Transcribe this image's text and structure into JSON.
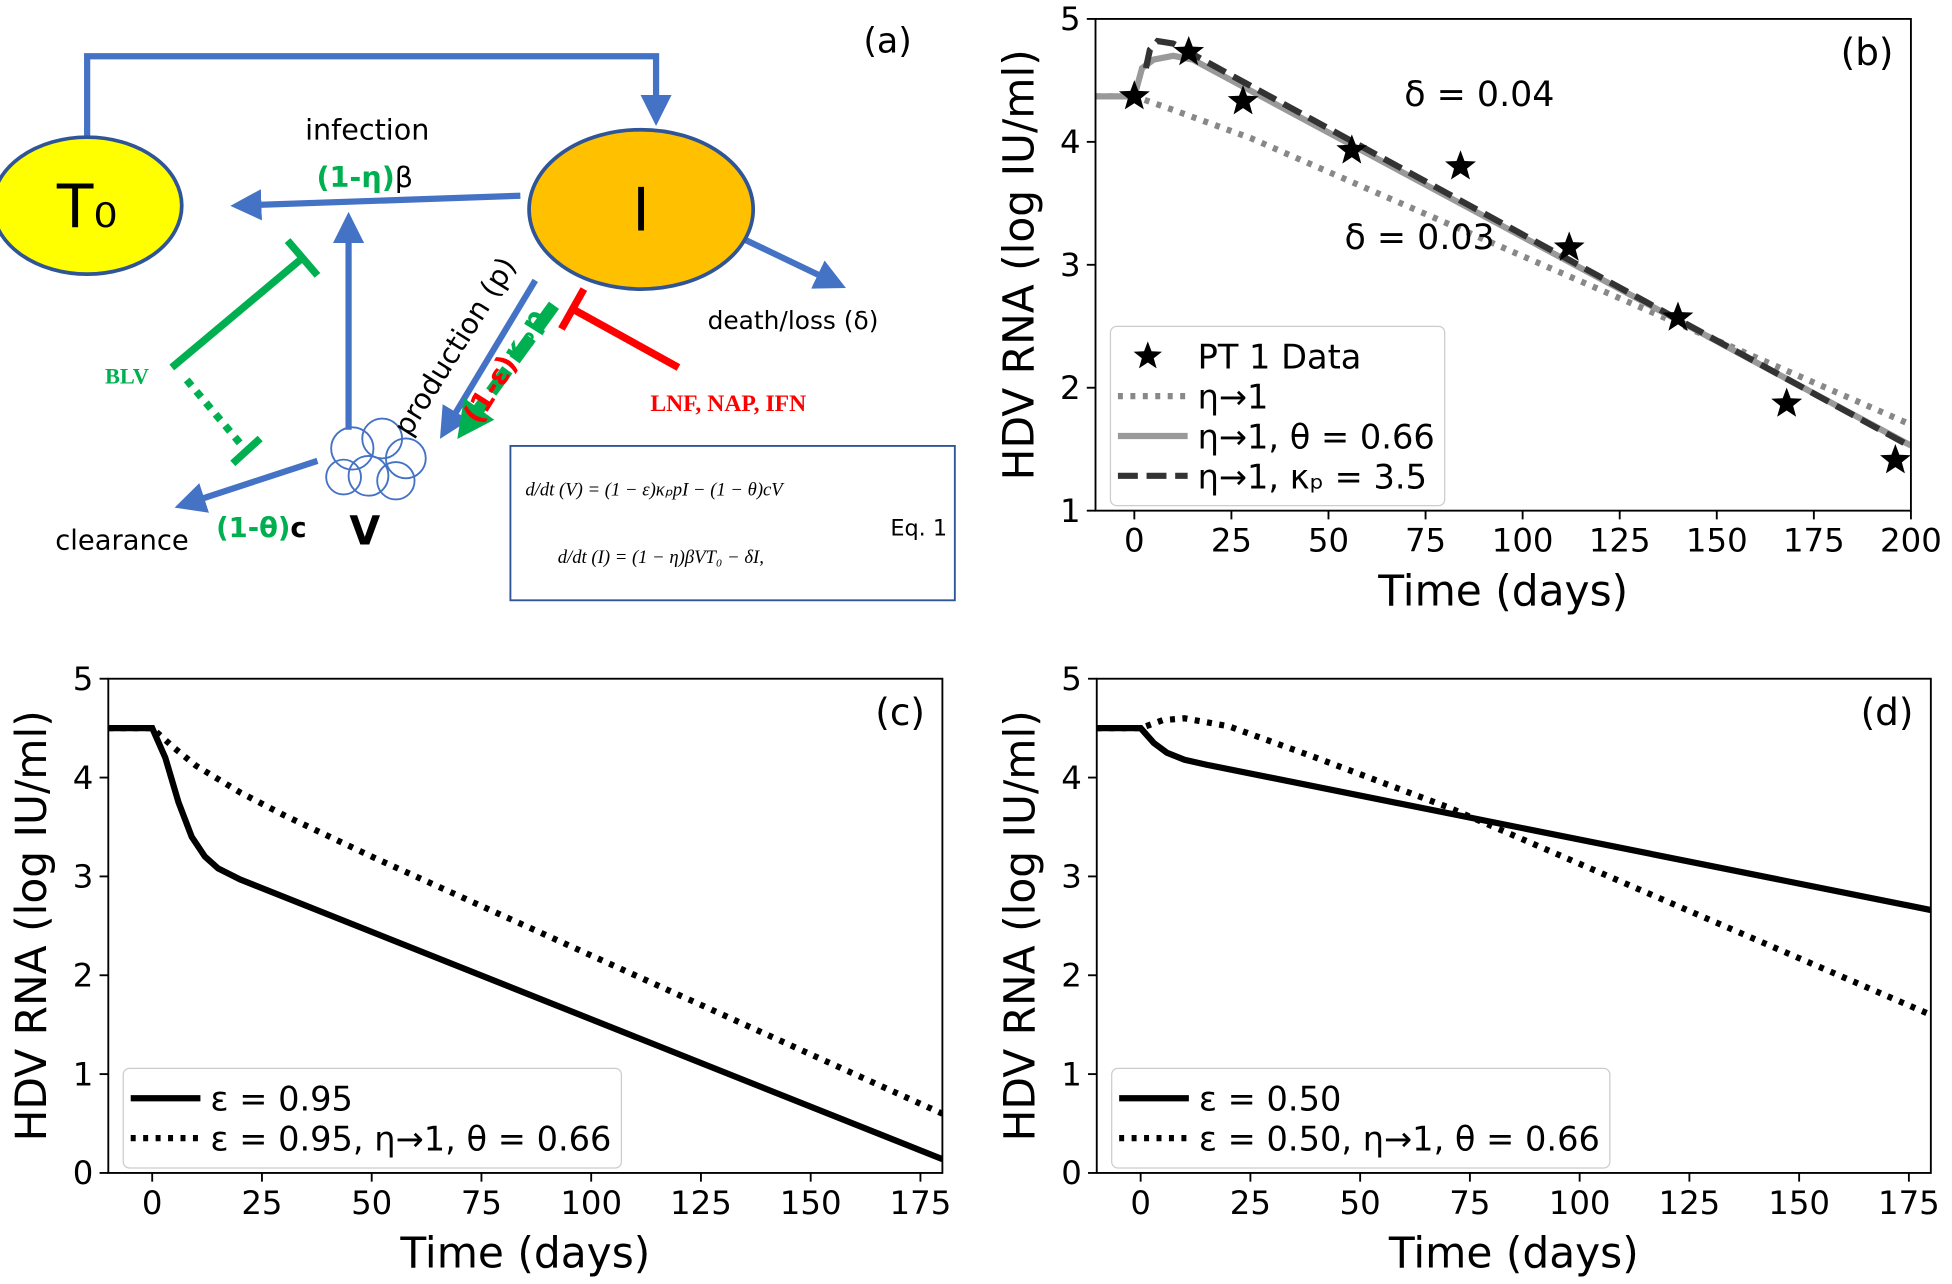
{
  "diagram": {
    "label": "(a)",
    "nodes": [
      {
        "label": "T₀"
      },
      {
        "label": "I"
      },
      {
        "label": "V"
      }
    ],
    "edge_labels": {
      "infection": "infection",
      "infection_rate": [
        "(1-η)",
        "β"
      ],
      "production": "production (p)",
      "production_rate": [
        "(1-ε)",
        "κₚp"
      ],
      "death": "death/loss (δ)",
      "clearance": "clearance",
      "clearance_rate": [
        "(1-θ)",
        "c"
      ]
    },
    "inhibitors": [
      "BLV",
      "LNF, NAP, IFN"
    ],
    "equations": {
      "lines": [
        "d/dt (V) = (1 − ε)κₚpI − (1 − θ)cV",
        "d/dt (I) = (1 − η)βVT₀ − δI,"
      ],
      "label": "Eq. 1"
    }
  },
  "chart_data": [
    {
      "type": "line",
      "label": "(b)",
      "x_label": "Time (days)",
      "y_label": "HDV RNA (log IU/ml)",
      "xlim": [
        -10,
        200
      ],
      "ylim": [
        1,
        5
      ],
      "xticks": [
        0,
        25,
        50,
        75,
        100,
        125,
        150,
        175,
        200
      ],
      "yticks": [
        1,
        2,
        3,
        4,
        5
      ],
      "legend": "lower left",
      "annotations": [
        "δ = 0.04",
        "δ = 0.03"
      ],
      "series": [
        {
          "name": "PT 1 Data",
          "color": "#000000",
          "marker": "star",
          "linestyle": "none",
          "x": [
            0,
            14,
            28,
            56,
            84,
            112,
            140,
            168,
            196
          ],
          "values": [
            4.37,
            4.73,
            4.33,
            3.93,
            3.8,
            3.14,
            2.57,
            1.87,
            1.41
          ]
        },
        {
          "name": "η→1",
          "color": "#888888",
          "linestyle": "dotted",
          "x": [
            -10,
            0,
            10,
            30,
            200
          ],
          "values": [
            4.37,
            4.37,
            4.26,
            4.03,
            1.7
          ]
        },
        {
          "name": "η→1, θ = 0.66",
          "color": "#999999",
          "linestyle": "solid",
          "x": [
            -10,
            0,
            2,
            5,
            10,
            15,
            200
          ],
          "values": [
            4.37,
            4.37,
            4.6,
            4.67,
            4.7,
            4.67,
            1.53
          ]
        },
        {
          "name": "η→1, κₚ = 3.5",
          "color": "#333333",
          "linestyle": "dashed",
          "x": [
            3,
            4,
            6,
            10,
            200
          ],
          "values": [
            4.6,
            4.75,
            4.82,
            4.8,
            1.52
          ]
        }
      ]
    },
    {
      "type": "line",
      "label": "(c)",
      "x_label": "Time (days)",
      "y_label": "HDV RNA (log IU/ml)",
      "xlim": [
        -10,
        180
      ],
      "ylim": [
        0,
        5
      ],
      "xticks": [
        0,
        25,
        50,
        75,
        100,
        125,
        150,
        175
      ],
      "yticks": [
        0,
        1,
        2,
        3,
        4,
        5
      ],
      "legend": "lower left",
      "series": [
        {
          "name": "ε = 0.95",
          "color": "#000000",
          "linestyle": "solid",
          "x": [
            -10,
            0,
            3,
            6,
            9,
            12,
            15,
            20,
            180
          ],
          "values": [
            4.5,
            4.5,
            4.2,
            3.75,
            3.4,
            3.2,
            3.08,
            2.97,
            0.14
          ]
        },
        {
          "name": "ε = 0.95, η→1, θ = 0.66",
          "color": "#000000",
          "linestyle": "dotted",
          "x": [
            -10,
            0,
            5,
            10,
            20,
            30,
            50,
            180
          ],
          "values": [
            4.5,
            4.5,
            4.3,
            4.12,
            3.85,
            3.62,
            3.2,
            0.6
          ]
        }
      ]
    },
    {
      "type": "line",
      "label": "(d)",
      "x_label": "Time (days)",
      "y_label": "HDV RNA (log IU/ml)",
      "xlim": [
        -10,
        180
      ],
      "ylim": [
        0,
        5
      ],
      "xticks": [
        0,
        25,
        50,
        75,
        100,
        125,
        150,
        175
      ],
      "yticks": [
        0,
        1,
        2,
        3,
        4,
        5
      ],
      "legend": "lower left",
      "series": [
        {
          "name": "ε = 0.50",
          "color": "#000000",
          "linestyle": "solid",
          "x": [
            -10,
            0,
            3,
            6,
            10,
            15,
            180
          ],
          "values": [
            4.5,
            4.5,
            4.35,
            4.25,
            4.18,
            4.13,
            2.66
          ]
        },
        {
          "name": "ε = 0.50, η→1, θ = 0.66",
          "color": "#000000",
          "linestyle": "dotted",
          "x": [
            -10,
            0,
            5,
            10,
            20,
            40,
            70,
            180
          ],
          "values": [
            4.5,
            4.5,
            4.58,
            4.6,
            4.52,
            4.2,
            3.7,
            1.6
          ]
        }
      ]
    }
  ]
}
